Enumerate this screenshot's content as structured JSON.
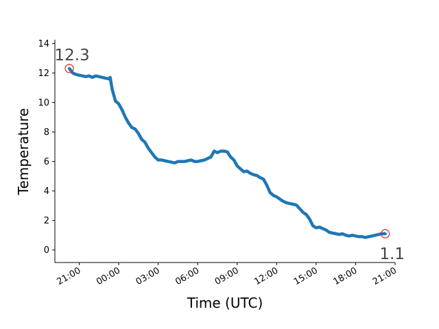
{
  "chart_data": {
    "type": "line",
    "title": "",
    "xlabel": "Time (UTC)",
    "ylabel": "Temperature",
    "x_tick_labels": [
      "21:00",
      "00:00",
      "03:00",
      "06:00",
      "09:00",
      "12:00",
      "15:00",
      "18:00",
      "21:00"
    ],
    "y_tick_labels": [
      "0",
      "2",
      "4",
      "6",
      "8",
      "10",
      "12",
      "14"
    ],
    "y_ticks": [
      0,
      2,
      4,
      6,
      8,
      10,
      12,
      14
    ],
    "ylim": [
      -0.85,
      14.25
    ],
    "x_ticks_hours": [
      21,
      24,
      27,
      30,
      33,
      36,
      39,
      42,
      45
    ],
    "xlim_hours": [
      19.15,
      45.0
    ],
    "grid": false,
    "line_color": "#1f77b4",
    "marker_color": "#d62728",
    "series": [
      {
        "x_hours": [
          20.25,
          20.5,
          20.75,
          21.0,
          21.25,
          21.5,
          21.75,
          22.0,
          22.25,
          22.5,
          22.75,
          23.0,
          23.25,
          23.35,
          23.5,
          23.75,
          24.0,
          24.25,
          24.5,
          24.75,
          25.0,
          25.25,
          25.5,
          25.75,
          26.0,
          26.25,
          26.5,
          26.75,
          27.0,
          27.25,
          27.5,
          27.75,
          28.0,
          28.25,
          28.5,
          28.75,
          29.0,
          29.25,
          29.5,
          29.75,
          30.0,
          30.25,
          30.5,
          30.75,
          31.0,
          31.25,
          31.5,
          31.75,
          32.0,
          32.25,
          32.5,
          32.75,
          33.0,
          33.25,
          33.5,
          33.75,
          34.0,
          34.25,
          34.5,
          34.75,
          35.0,
          35.25,
          35.5,
          35.75,
          36.0,
          36.25,
          36.5,
          36.75,
          37.0,
          37.25,
          37.5,
          37.75,
          38.0,
          38.25,
          38.5,
          38.75,
          39.0,
          39.25,
          39.5,
          39.75,
          40.0,
          40.25,
          40.5,
          40.75,
          41.0,
          41.25,
          41.5,
          41.75,
          42.0,
          42.25,
          42.5,
          42.75,
          43.0,
          43.25,
          43.5,
          43.75,
          44.0,
          44.25
        ],
        "values": [
          12.3,
          12.0,
          11.9,
          11.85,
          11.8,
          11.75,
          11.8,
          11.7,
          11.8,
          11.75,
          11.7,
          11.65,
          11.6,
          11.7,
          10.9,
          10.1,
          9.9,
          9.5,
          9.0,
          8.6,
          8.3,
          8.2,
          7.9,
          7.5,
          7.3,
          6.9,
          6.6,
          6.3,
          6.1,
          6.1,
          6.05,
          6.0,
          5.95,
          5.9,
          6.0,
          6.0,
          6.0,
          6.05,
          6.1,
          6.0,
          6.0,
          6.05,
          6.1,
          6.2,
          6.3,
          6.7,
          6.6,
          6.7,
          6.7,
          6.65,
          6.3,
          6.1,
          5.7,
          5.5,
          5.3,
          5.35,
          5.2,
          5.1,
          5.05,
          4.9,
          4.8,
          4.4,
          3.9,
          3.7,
          3.6,
          3.45,
          3.3,
          3.2,
          3.15,
          3.1,
          3.05,
          2.8,
          2.55,
          2.4,
          2.1,
          1.65,
          1.5,
          1.55,
          1.45,
          1.35,
          1.2,
          1.15,
          1.1,
          1.05,
          1.1,
          1.0,
          0.95,
          1.0,
          0.95,
          0.9,
          0.9,
          0.85,
          0.9,
          0.95,
          1.0,
          1.05,
          1.1,
          1.1
        ]
      }
    ],
    "annotations": [
      {
        "label": "12.3",
        "x_hours": 20.25,
        "value": 12.3,
        "position": "above-left"
      },
      {
        "label": "1.1",
        "x_hours": 44.25,
        "value": 1.1,
        "position": "below-left"
      }
    ]
  }
}
